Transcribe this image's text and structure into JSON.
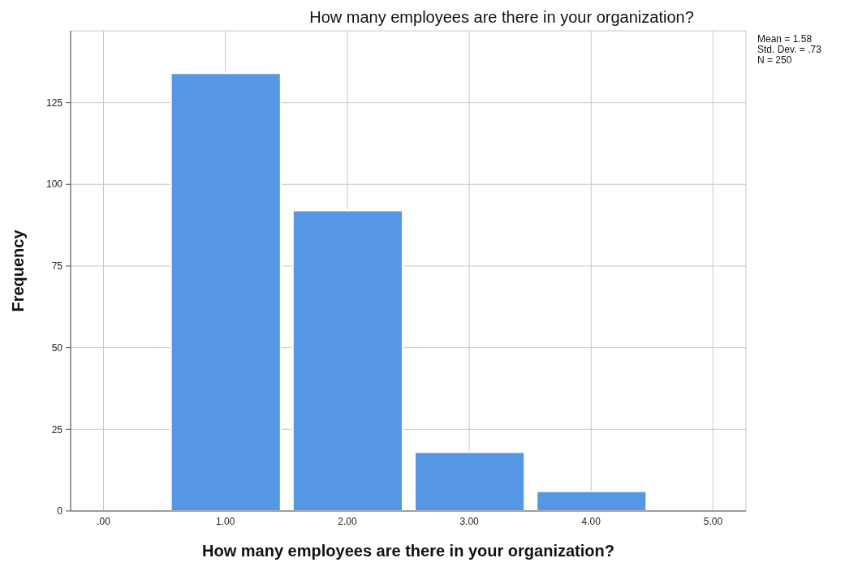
{
  "chart_data": {
    "type": "histogram",
    "title": "How many employees are there in your organization?",
    "xlabel": "How many employees are there in your organization?",
    "ylabel": "Frequency",
    "bins": [
      0.5,
      1.5,
      2.5,
      3.5,
      4.5
    ],
    "values": [
      134,
      92,
      18,
      6
    ],
    "color": "#5597e4",
    "xlim": [
      -0.27,
      5.27
    ],
    "xticks": [
      {
        "value": 0,
        "label": ".00"
      },
      {
        "value": 1,
        "label": "1.00"
      },
      {
        "value": 2,
        "label": "2.00"
      },
      {
        "value": 3,
        "label": "3.00"
      },
      {
        "value": 4,
        "label": "4.00"
      },
      {
        "value": 5,
        "label": "5.00"
      }
    ],
    "ylim": [
      0,
      147
    ],
    "yticks": [
      0,
      25,
      50,
      75,
      100,
      125
    ],
    "grid": true,
    "annotations": [
      "Mean = 1.58",
      "Std. Dev. = .73",
      "N = 250"
    ]
  }
}
